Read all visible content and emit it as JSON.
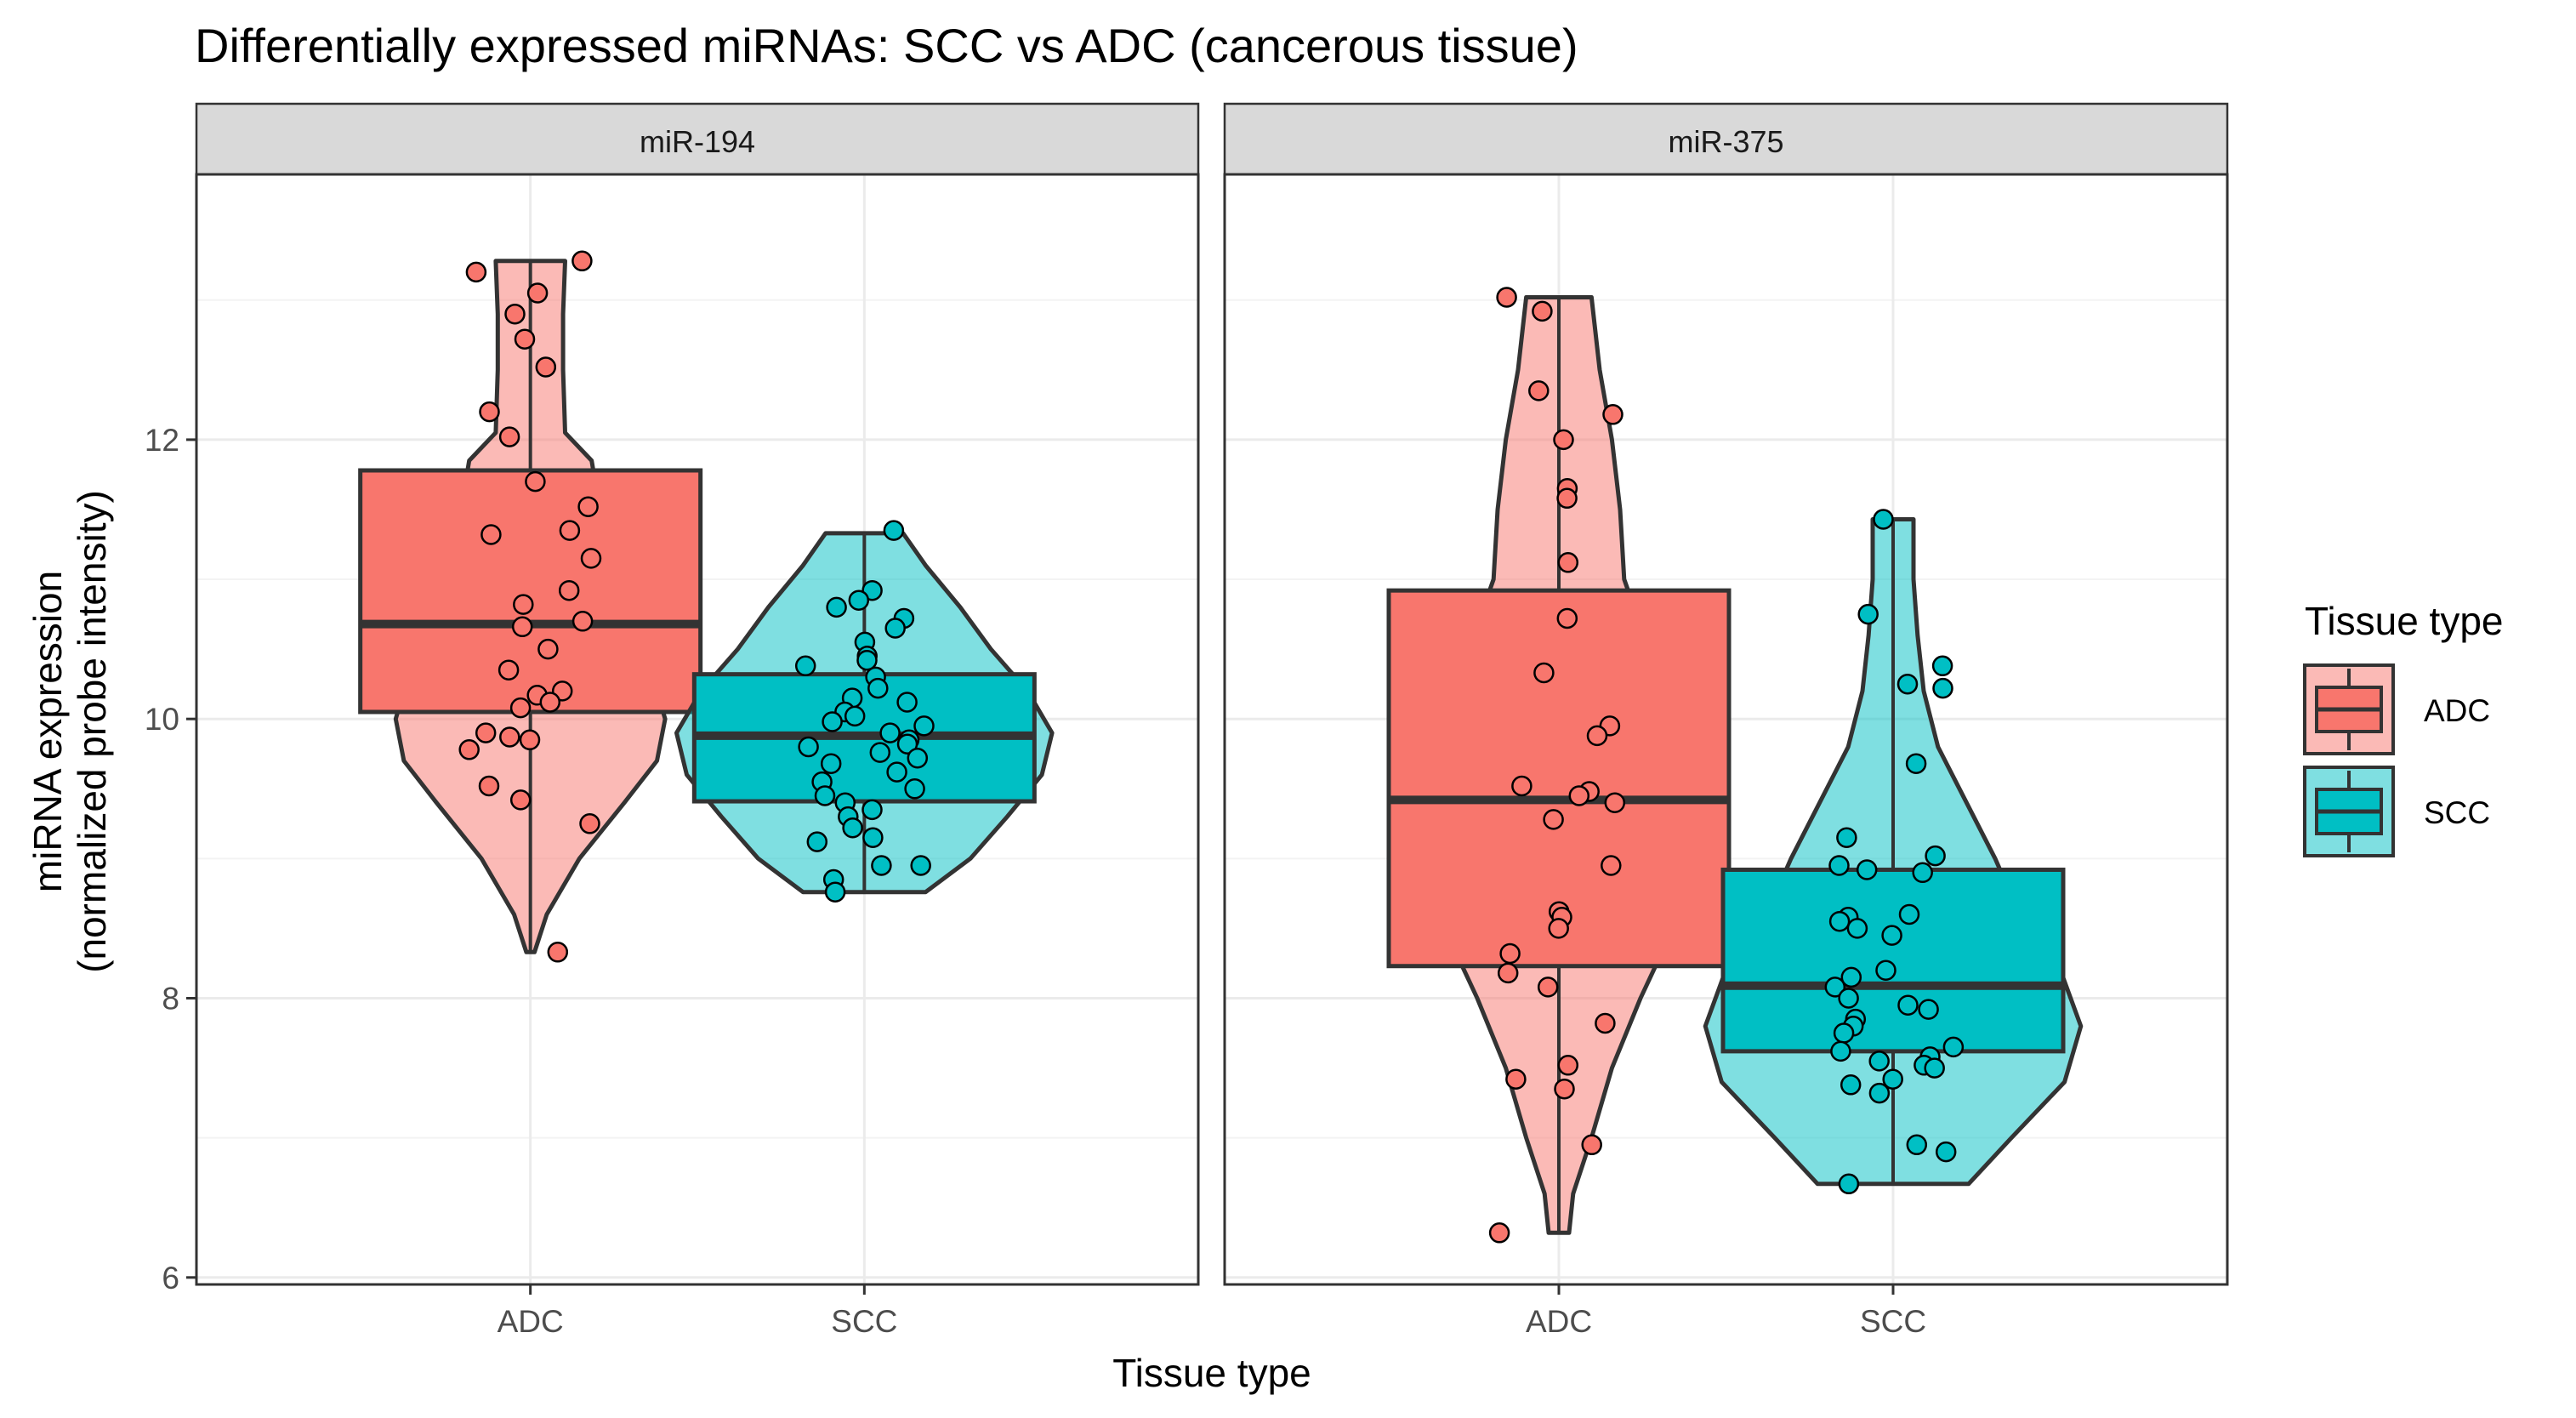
{
  "chart_data": {
    "type": "violin",
    "title": "Differentially expressed miRNAs: SCC vs ADC (cancerous tissue)",
    "xlabel": "Tissue type",
    "ylabel_lines": [
      "miRNA expression",
      "(normalized probe intensity)"
    ],
    "categories": [
      "ADC",
      "SCC"
    ],
    "ylim": [
      5.95,
      13.9
    ],
    "y_ticks": [
      6,
      8,
      10,
      12
    ],
    "y_tick_labels": [
      "6",
      "8",
      "10",
      "12"
    ],
    "grid": true,
    "legend": {
      "title": "Tissue type",
      "placement": "right",
      "entries": [
        {
          "label": "ADC",
          "fill": "#F8766D"
        },
        {
          "label": "SCC",
          "fill": "#00BFC4"
        }
      ]
    },
    "colors": {
      "ADC": "#F8766D",
      "SCC": "#00BFC4"
    },
    "panels": [
      {
        "title": "miR-194",
        "groups": [
          {
            "category": "ADC",
            "box": {
              "q1": 10.05,
              "median": 10.68,
              "q3": 11.78
            },
            "violin": {
              "min": 8.33,
              "max": 13.28,
              "profile": [
                [
                  8.33,
                  0.02
                ],
                [
                  8.6,
                  0.08
                ],
                [
                  9.0,
                  0.24
                ],
                [
                  9.4,
                  0.46
                ],
                [
                  9.7,
                  0.62
                ],
                [
                  10.0,
                  0.66
                ],
                [
                  10.3,
                  0.6
                ],
                [
                  10.7,
                  0.46
                ],
                [
                  11.1,
                  0.36
                ],
                [
                  11.5,
                  0.34
                ],
                [
                  11.85,
                  0.3
                ],
                [
                  12.05,
                  0.17
                ],
                [
                  12.5,
                  0.16
                ],
                [
                  12.9,
                  0.16
                ],
                [
                  13.28,
                  0.17
                ]
              ]
            },
            "points": [
              13.28,
              13.2,
              13.05,
              12.9,
              12.72,
              12.52,
              12.2,
              12.02,
              11.7,
              11.52,
              11.35,
              11.32,
              11.15,
              10.92,
              10.82,
              10.7,
              10.66,
              10.5,
              10.35,
              10.2,
              10.17,
              10.12,
              10.08,
              9.9,
              9.87,
              9.85,
              9.78,
              9.52,
              9.42,
              9.25,
              8.33
            ]
          },
          {
            "category": "SCC",
            "box": {
              "q1": 9.41,
              "median": 9.88,
              "q3": 10.32
            },
            "violin": {
              "min": 8.76,
              "max": 11.33,
              "profile": [
                [
                  8.76,
                  0.3
                ],
                [
                  9.0,
                  0.52
                ],
                [
                  9.3,
                  0.7
                ],
                [
                  9.6,
                  0.87
                ],
                [
                  9.9,
                  0.92
                ],
                [
                  10.2,
                  0.8
                ],
                [
                  10.5,
                  0.62
                ],
                [
                  10.8,
                  0.47
                ],
                [
                  11.1,
                  0.3
                ],
                [
                  11.33,
                  0.19
                ]
              ]
            },
            "points": [
              11.35,
              10.92,
              10.85,
              10.8,
              10.72,
              10.65,
              10.55,
              10.45,
              10.42,
              10.38,
              10.3,
              10.22,
              10.15,
              10.12,
              10.05,
              10.02,
              9.98,
              9.95,
              9.9,
              9.85,
              9.82,
              9.8,
              9.76,
              9.72,
              9.68,
              9.62,
              9.55,
              9.5,
              9.45,
              9.4,
              9.35,
              9.3,
              9.22,
              9.15,
              9.12,
              8.95,
              8.95,
              8.85,
              8.76
            ]
          }
        ]
      },
      {
        "title": "miR-375",
        "groups": [
          {
            "category": "ADC",
            "box": {
              "q1": 8.23,
              "median": 9.42,
              "q3": 10.92
            },
            "violin": {
              "min": 6.32,
              "max": 13.02,
              "profile": [
                [
                  6.32,
                  0.05
                ],
                [
                  6.6,
                  0.07
                ],
                [
                  7.0,
                  0.16
                ],
                [
                  7.5,
                  0.26
                ],
                [
                  8.0,
                  0.4
                ],
                [
                  8.5,
                  0.56
                ],
                [
                  9.0,
                  0.66
                ],
                [
                  9.5,
                  0.67
                ],
                [
                  10.0,
                  0.58
                ],
                [
                  10.5,
                  0.44
                ],
                [
                  11.0,
                  0.32
                ],
                [
                  11.5,
                  0.3
                ],
                [
                  12.0,
                  0.26
                ],
                [
                  12.5,
                  0.2
                ],
                [
                  13.02,
                  0.16
                ]
              ]
            },
            "points": [
              13.02,
              12.92,
              12.35,
              12.18,
              12.0,
              11.65,
              11.58,
              11.12,
              10.72,
              10.33,
              9.95,
              9.88,
              9.52,
              9.48,
              9.45,
              9.4,
              9.28,
              8.95,
              8.62,
              8.58,
              8.5,
              8.32,
              8.18,
              8.08,
              7.82,
              7.52,
              7.42,
              7.35,
              6.95,
              6.32
            ]
          },
          {
            "category": "SCC",
            "box": {
              "q1": 7.62,
              "median": 8.09,
              "q3": 8.92
            },
            "violin": {
              "min": 6.67,
              "max": 11.43,
              "profile": [
                [
                  6.67,
                  0.37
                ],
                [
                  7.0,
                  0.58
                ],
                [
                  7.4,
                  0.84
                ],
                [
                  7.8,
                  0.92
                ],
                [
                  8.2,
                  0.82
                ],
                [
                  8.6,
                  0.62
                ],
                [
                  9.0,
                  0.5
                ],
                [
                  9.4,
                  0.36
                ],
                [
                  9.8,
                  0.22
                ],
                [
                  10.2,
                  0.15
                ],
                [
                  10.6,
                  0.12
                ],
                [
                  11.0,
                  0.1
                ],
                [
                  11.43,
                  0.1
                ]
              ]
            },
            "points": [
              11.43,
              10.75,
              10.38,
              10.25,
              10.22,
              9.68,
              9.15,
              9.02,
              8.95,
              8.92,
              8.9,
              8.6,
              8.58,
              8.55,
              8.5,
              8.45,
              8.2,
              8.15,
              8.08,
              8.0,
              7.95,
              7.92,
              7.85,
              7.8,
              7.75,
              7.65,
              7.62,
              7.58,
              7.55,
              7.52,
              7.5,
              7.42,
              7.38,
              7.32,
              6.95,
              6.9,
              6.67
            ]
          }
        ]
      }
    ]
  }
}
